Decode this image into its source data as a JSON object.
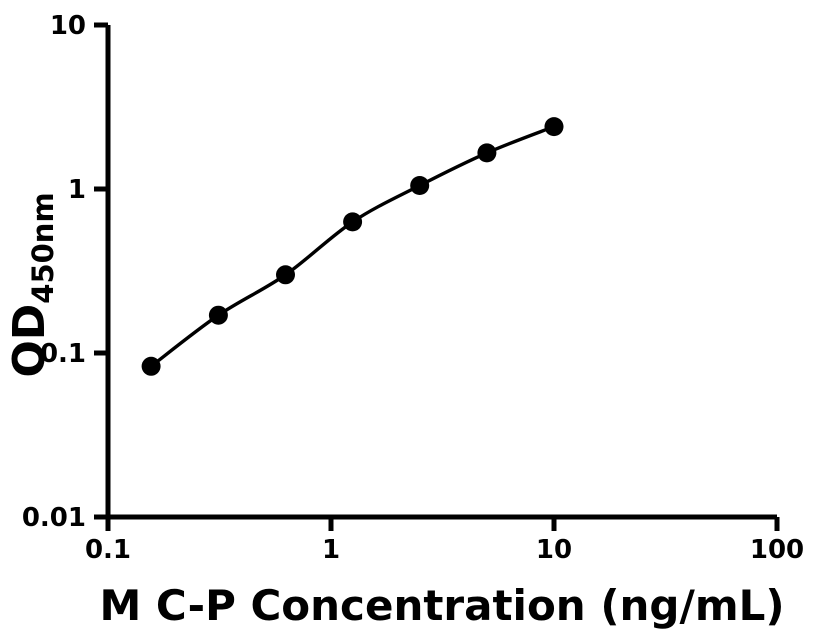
{
  "figure": {
    "background": "#ffffff"
  },
  "chart_data": {
    "type": "scatter",
    "title": "",
    "xlabel": "M C-P Concentration (ng/mL)",
    "ylabel_main": "OD",
    "ylabel_sub": "450nm",
    "x_scale": "log",
    "y_scale": "log",
    "xlim": [
      0.1,
      100
    ],
    "ylim": [
      0.01,
      10
    ],
    "grid": false,
    "legend": "none",
    "x_ticks": [
      {
        "value": 0.1,
        "label": "0.1"
      },
      {
        "value": 1,
        "label": "1"
      },
      {
        "value": 10,
        "label": "10"
      },
      {
        "value": 100,
        "label": "100"
      }
    ],
    "y_ticks": [
      {
        "value": 0.01,
        "label": "0.01"
      },
      {
        "value": 0.1,
        "label": "0.1"
      },
      {
        "value": 1,
        "label": "1"
      },
      {
        "value": 10,
        "label": "10"
      }
    ],
    "series": [
      {
        "name": "standard-curve",
        "marker": "filled-circle",
        "line": "smooth",
        "x": [
          0.156,
          0.3125,
          0.625,
          1.25,
          2.5,
          5,
          10
        ],
        "y": [
          0.083,
          0.17,
          0.3,
          0.63,
          1.05,
          1.66,
          2.4
        ]
      }
    ],
    "colors": {
      "axis": "#000000",
      "line": "#000000",
      "marker": "#000000",
      "text": "#000000",
      "background": "#ffffff"
    }
  }
}
